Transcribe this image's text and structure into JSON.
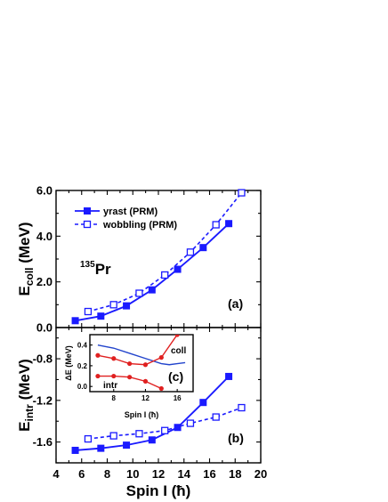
{
  "chart_data": [
    {
      "panel_label": "(a)",
      "type": "line",
      "ylabel_main": "E",
      "ylabel_sub": "coll",
      "ylabel_unit": " (MeV)",
      "xlim": [
        4,
        20
      ],
      "ylim": [
        0,
        6
      ],
      "yticks": [
        0,
        2,
        4,
        6
      ],
      "ytick_labels": [
        "0.0",
        "2.0",
        "4.0",
        "6.0"
      ],
      "nucleus_mass": "135",
      "nucleus_symbol": "Pr",
      "series": [
        {
          "name": "yrast (PRM)",
          "style": "solid",
          "marker": "filled-square",
          "color": "#1a1aff",
          "x": [
            5.5,
            7.5,
            9.5,
            11.5,
            13.5,
            15.5,
            17.5
          ],
          "y": [
            0.3,
            0.5,
            0.95,
            1.65,
            2.55,
            3.5,
            4.55
          ]
        },
        {
          "name": "wobbling (PRM)",
          "style": "dashed",
          "marker": "open-square",
          "color": "#1a1aff",
          "x": [
            6.5,
            8.5,
            10.5,
            12.5,
            14.5,
            16.5,
            18.5
          ],
          "y": [
            0.7,
            1.0,
            1.5,
            2.3,
            3.3,
            4.5,
            5.9
          ]
        }
      ]
    },
    {
      "panel_label": "(b)",
      "type": "line",
      "ylabel_main": "E",
      "ylabel_sub": "intr",
      "ylabel_unit": " (MeV)",
      "xlabel": "Spin I (ħ)",
      "xlim": [
        4,
        20
      ],
      "ylim": [
        -1.8,
        -0.5
      ],
      "xticks": [
        4,
        6,
        8,
        10,
        12,
        14,
        16,
        18,
        20
      ],
      "xtick_labels": [
        "4",
        "6",
        "8",
        "10",
        "12",
        "14",
        "16",
        "18",
        "20"
      ],
      "yticks": [
        -1.6,
        -1.2,
        -0.8
      ],
      "ytick_labels": [
        "-1.6",
        "-1.2",
        "-0.8"
      ],
      "series": [
        {
          "name": "yrast (PRM)",
          "style": "solid",
          "marker": "filled-square",
          "color": "#1a1aff",
          "x": [
            5.5,
            7.5,
            9.5,
            11.5,
            13.5,
            15.5,
            17.5
          ],
          "y": [
            -1.68,
            -1.66,
            -1.63,
            -1.58,
            -1.46,
            -1.22,
            -0.97
          ]
        },
        {
          "name": "wobbling (PRM)",
          "style": "dashed",
          "marker": "open-square",
          "color": "#1a1aff",
          "x": [
            6.5,
            8.5,
            10.5,
            12.5,
            14.5,
            16.5,
            18.5
          ],
          "y": [
            -1.57,
            -1.54,
            -1.52,
            -1.49,
            -1.42,
            -1.36,
            -1.27
          ]
        }
      ]
    },
    {
      "panel_label": "(c)",
      "type": "line",
      "ylabel": "ΔE (MeV)",
      "xlabel": "Spin I (ħ)",
      "xlim": [
        5,
        18
      ],
      "ylim": [
        -0.05,
        0.5
      ],
      "xticks": [
        8,
        12,
        16
      ],
      "xtick_labels": [
        "8",
        "12",
        "16"
      ],
      "yticks": [
        0.0,
        0.2,
        0.4
      ],
      "ytick_labels": [
        "0.0",
        "0.2",
        "0.4"
      ],
      "label_coll": "coll",
      "label_intr": "intr",
      "series": [
        {
          "curve": "coll",
          "marker": "none",
          "color": "#2244cc",
          "x": [
            6,
            8,
            10,
            12,
            14,
            15,
            16,
            17
          ],
          "y": [
            0.4,
            0.37,
            0.32,
            0.27,
            0.22,
            0.21,
            0.22,
            0.23
          ]
        },
        {
          "curve": "upper-red",
          "marker": "filled-circle",
          "color": "#e02020",
          "x": [
            6,
            8,
            10,
            12,
            14,
            16
          ],
          "y": [
            0.3,
            0.27,
            0.22,
            0.21,
            0.28,
            0.5
          ]
        },
        {
          "curve": "lower-red",
          "marker": "filled-circle",
          "color": "#e02020",
          "x": [
            6,
            8,
            10,
            12,
            14
          ],
          "y": [
            0.1,
            0.1,
            0.09,
            0.05,
            -0.02
          ]
        }
      ]
    }
  ]
}
